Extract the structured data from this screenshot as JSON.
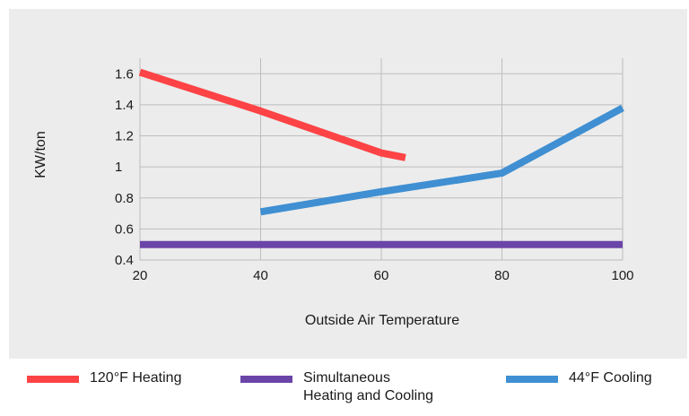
{
  "chart_data": {
    "type": "line",
    "xlabel": "Outside Air Temperature",
    "ylabel": "KW/ton",
    "xlim": [
      20,
      100
    ],
    "ylim": [
      0.4,
      1.7
    ],
    "x_ticks": [
      20,
      40,
      60,
      80,
      100
    ],
    "x_tick_labels": [
      "20",
      "40",
      "60",
      "80",
      "100"
    ],
    "y_ticks": [
      0.4,
      0.6,
      0.8,
      1.0,
      1.2,
      1.4,
      1.6
    ],
    "y_tick_labels": [
      "0.4",
      "0.6",
      "0.8",
      "1",
      "1.2",
      "1.4",
      "1.6"
    ],
    "grid": "vertical and horizontal",
    "legend_placement": "bottom",
    "series": [
      {
        "name": "120°F Heating",
        "color": "#fd4345",
        "points": [
          [
            20,
            1.61
          ],
          [
            40,
            1.36
          ],
          [
            60,
            1.09
          ],
          [
            64,
            1.06
          ]
        ]
      },
      {
        "name": "Simultaneous\nHeating and Cooling",
        "color": "#6b44a8",
        "points": [
          [
            20,
            0.5
          ],
          [
            100,
            0.5
          ]
        ]
      },
      {
        "name": "44°F Cooling",
        "color": "#3f8fd2",
        "points": [
          [
            40,
            0.71
          ],
          [
            60,
            0.84
          ],
          [
            80,
            0.96
          ],
          [
            100,
            1.38
          ]
        ]
      }
    ]
  }
}
